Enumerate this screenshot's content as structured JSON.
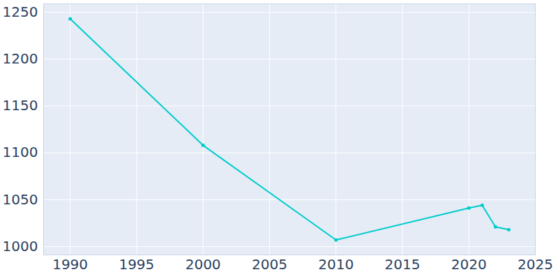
{
  "chart_data": {
    "type": "line",
    "x": [
      1990,
      2000,
      2010,
      2020,
      2021,
      2022,
      2023
    ],
    "values": [
      1243,
      1108,
      1007,
      1041,
      1044,
      1021,
      1018
    ],
    "color": "#00cccc",
    "marker": "circle",
    "xlim": [
      1988,
      2025
    ],
    "ylim": [
      991,
      1259
    ],
    "xticks": [
      1990,
      1995,
      2000,
      2005,
      2010,
      2015,
      2020,
      2025
    ],
    "yticks": [
      1000,
      1050,
      1100,
      1150,
      1200,
      1250
    ],
    "grid": true
  }
}
